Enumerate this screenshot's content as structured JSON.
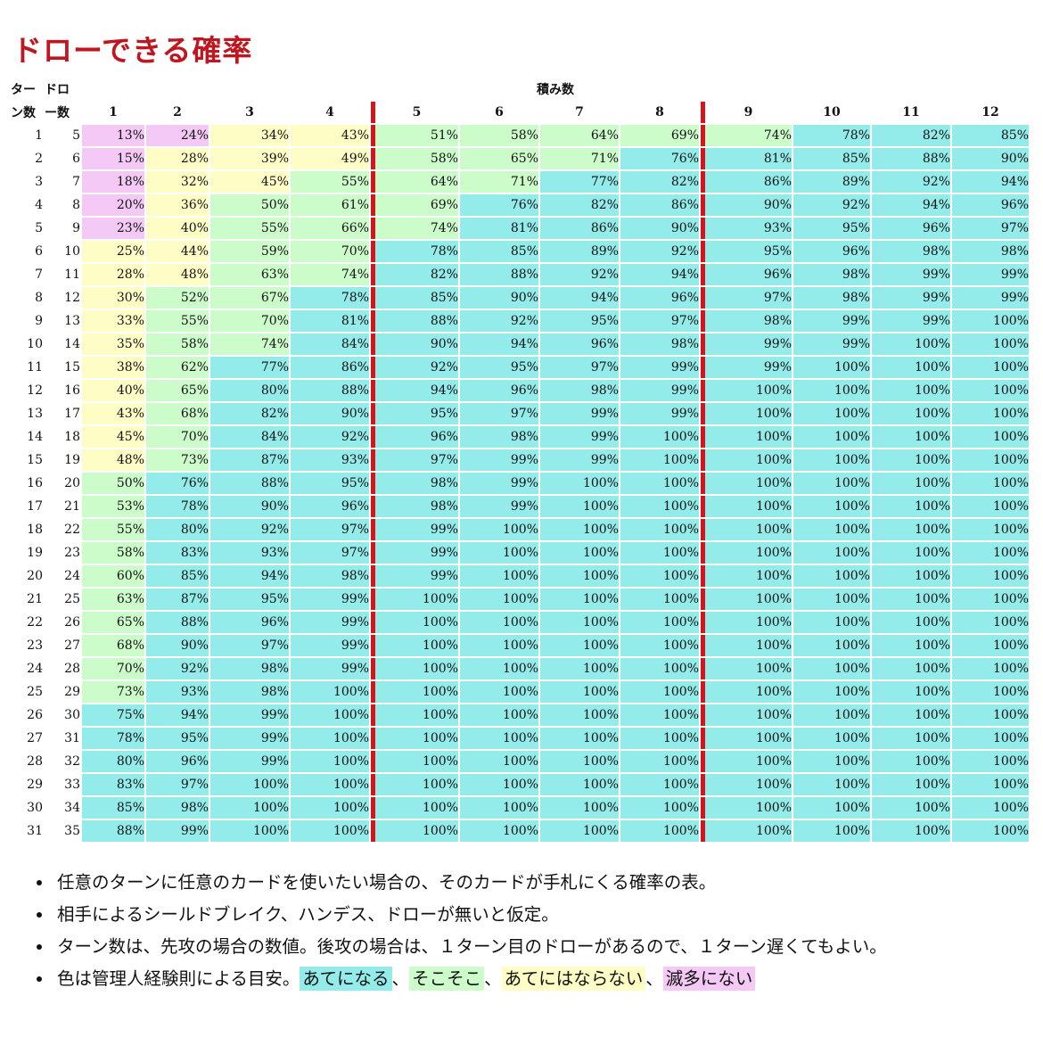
{
  "title": "ドローできる確率",
  "headers": {
    "turn_top": "ター",
    "turn_bottom": "ン数",
    "draw_top": "ドロ",
    "draw_bottom": "ー数",
    "stack_label": "積み数",
    "stack_counts": [
      "1",
      "2",
      "3",
      "4",
      "5",
      "6",
      "7",
      "8",
      "9",
      "10",
      "11",
      "12"
    ]
  },
  "colors": {
    "rare": "#f5c9f5",
    "unreliable": "#fefdc6",
    "moderate": "#cdfccb",
    "reliable": "#93ebea",
    "separator": "#d7141a",
    "title": "#c0161f"
  },
  "rows": [
    {
      "turn": "1",
      "draw": "5",
      "values": [
        "13%",
        "24%",
        "34%",
        "43%",
        "51%",
        "58%",
        "64%",
        "69%",
        "74%",
        "78%",
        "82%",
        "85%"
      ],
      "levels": [
        0,
        0,
        1,
        1,
        2,
        2,
        2,
        2,
        2,
        3,
        3,
        3
      ]
    },
    {
      "turn": "2",
      "draw": "6",
      "values": [
        "15%",
        "28%",
        "39%",
        "49%",
        "58%",
        "65%",
        "71%",
        "76%",
        "81%",
        "85%",
        "88%",
        "90%"
      ],
      "levels": [
        0,
        1,
        1,
        1,
        2,
        2,
        2,
        3,
        3,
        3,
        3,
        3
      ]
    },
    {
      "turn": "3",
      "draw": "7",
      "values": [
        "18%",
        "32%",
        "45%",
        "55%",
        "64%",
        "71%",
        "77%",
        "82%",
        "86%",
        "89%",
        "92%",
        "94%"
      ],
      "levels": [
        0,
        1,
        1,
        2,
        2,
        2,
        3,
        3,
        3,
        3,
        3,
        3
      ]
    },
    {
      "turn": "4",
      "draw": "8",
      "values": [
        "20%",
        "36%",
        "50%",
        "61%",
        "69%",
        "76%",
        "82%",
        "86%",
        "90%",
        "92%",
        "94%",
        "96%"
      ],
      "levels": [
        0,
        1,
        2,
        2,
        2,
        3,
        3,
        3,
        3,
        3,
        3,
        3
      ]
    },
    {
      "turn": "5",
      "draw": "9",
      "values": [
        "23%",
        "40%",
        "55%",
        "66%",
        "74%",
        "81%",
        "86%",
        "90%",
        "93%",
        "95%",
        "96%",
        "97%"
      ],
      "levels": [
        0,
        1,
        2,
        2,
        2,
        3,
        3,
        3,
        3,
        3,
        3,
        3
      ]
    },
    {
      "turn": "6",
      "draw": "10",
      "values": [
        "25%",
        "44%",
        "59%",
        "70%",
        "78%",
        "85%",
        "89%",
        "92%",
        "95%",
        "96%",
        "98%",
        "98%"
      ],
      "levels": [
        1,
        1,
        2,
        2,
        3,
        3,
        3,
        3,
        3,
        3,
        3,
        3
      ]
    },
    {
      "turn": "7",
      "draw": "11",
      "values": [
        "28%",
        "48%",
        "63%",
        "74%",
        "82%",
        "88%",
        "92%",
        "94%",
        "96%",
        "98%",
        "99%",
        "99%"
      ],
      "levels": [
        1,
        1,
        2,
        2,
        3,
        3,
        3,
        3,
        3,
        3,
        3,
        3
      ]
    },
    {
      "turn": "8",
      "draw": "12",
      "values": [
        "30%",
        "52%",
        "67%",
        "78%",
        "85%",
        "90%",
        "94%",
        "96%",
        "97%",
        "98%",
        "99%",
        "99%"
      ],
      "levels": [
        1,
        2,
        2,
        3,
        3,
        3,
        3,
        3,
        3,
        3,
        3,
        3
      ]
    },
    {
      "turn": "9",
      "draw": "13",
      "values": [
        "33%",
        "55%",
        "70%",
        "81%",
        "88%",
        "92%",
        "95%",
        "97%",
        "98%",
        "99%",
        "99%",
        "100%"
      ],
      "levels": [
        1,
        2,
        2,
        3,
        3,
        3,
        3,
        3,
        3,
        3,
        3,
        3
      ]
    },
    {
      "turn": "10",
      "draw": "14",
      "values": [
        "35%",
        "58%",
        "74%",
        "84%",
        "90%",
        "94%",
        "96%",
        "98%",
        "99%",
        "99%",
        "100%",
        "100%"
      ],
      "levels": [
        1,
        2,
        2,
        3,
        3,
        3,
        3,
        3,
        3,
        3,
        3,
        3
      ]
    },
    {
      "turn": "11",
      "draw": "15",
      "values": [
        "38%",
        "62%",
        "77%",
        "86%",
        "92%",
        "95%",
        "97%",
        "99%",
        "99%",
        "100%",
        "100%",
        "100%"
      ],
      "levels": [
        1,
        2,
        3,
        3,
        3,
        3,
        3,
        3,
        3,
        3,
        3,
        3
      ]
    },
    {
      "turn": "12",
      "draw": "16",
      "values": [
        "40%",
        "65%",
        "80%",
        "88%",
        "94%",
        "96%",
        "98%",
        "99%",
        "100%",
        "100%",
        "100%",
        "100%"
      ],
      "levels": [
        1,
        2,
        3,
        3,
        3,
        3,
        3,
        3,
        3,
        3,
        3,
        3
      ]
    },
    {
      "turn": "13",
      "draw": "17",
      "values": [
        "43%",
        "68%",
        "82%",
        "90%",
        "95%",
        "97%",
        "99%",
        "99%",
        "100%",
        "100%",
        "100%",
        "100%"
      ],
      "levels": [
        1,
        2,
        3,
        3,
        3,
        3,
        3,
        3,
        3,
        3,
        3,
        3
      ]
    },
    {
      "turn": "14",
      "draw": "18",
      "values": [
        "45%",
        "70%",
        "84%",
        "92%",
        "96%",
        "98%",
        "99%",
        "100%",
        "100%",
        "100%",
        "100%",
        "100%"
      ],
      "levels": [
        1,
        2,
        3,
        3,
        3,
        3,
        3,
        3,
        3,
        3,
        3,
        3
      ]
    },
    {
      "turn": "15",
      "draw": "19",
      "values": [
        "48%",
        "73%",
        "87%",
        "93%",
        "97%",
        "99%",
        "99%",
        "100%",
        "100%",
        "100%",
        "100%",
        "100%"
      ],
      "levels": [
        1,
        2,
        3,
        3,
        3,
        3,
        3,
        3,
        3,
        3,
        3,
        3
      ]
    },
    {
      "turn": "16",
      "draw": "20",
      "values": [
        "50%",
        "76%",
        "88%",
        "95%",
        "98%",
        "99%",
        "100%",
        "100%",
        "100%",
        "100%",
        "100%",
        "100%"
      ],
      "levels": [
        2,
        3,
        3,
        3,
        3,
        3,
        3,
        3,
        3,
        3,
        3,
        3
      ]
    },
    {
      "turn": "17",
      "draw": "21",
      "values": [
        "53%",
        "78%",
        "90%",
        "96%",
        "98%",
        "99%",
        "100%",
        "100%",
        "100%",
        "100%",
        "100%",
        "100%"
      ],
      "levels": [
        2,
        3,
        3,
        3,
        3,
        3,
        3,
        3,
        3,
        3,
        3,
        3
      ]
    },
    {
      "turn": "18",
      "draw": "22",
      "values": [
        "55%",
        "80%",
        "92%",
        "97%",
        "99%",
        "100%",
        "100%",
        "100%",
        "100%",
        "100%",
        "100%",
        "100%"
      ],
      "levels": [
        2,
        3,
        3,
        3,
        3,
        3,
        3,
        3,
        3,
        3,
        3,
        3
      ]
    },
    {
      "turn": "19",
      "draw": "23",
      "values": [
        "58%",
        "83%",
        "93%",
        "97%",
        "99%",
        "100%",
        "100%",
        "100%",
        "100%",
        "100%",
        "100%",
        "100%"
      ],
      "levels": [
        2,
        3,
        3,
        3,
        3,
        3,
        3,
        3,
        3,
        3,
        3,
        3
      ]
    },
    {
      "turn": "20",
      "draw": "24",
      "values": [
        "60%",
        "85%",
        "94%",
        "98%",
        "99%",
        "100%",
        "100%",
        "100%",
        "100%",
        "100%",
        "100%",
        "100%"
      ],
      "levels": [
        2,
        3,
        3,
        3,
        3,
        3,
        3,
        3,
        3,
        3,
        3,
        3
      ]
    },
    {
      "turn": "21",
      "draw": "25",
      "values": [
        "63%",
        "87%",
        "95%",
        "99%",
        "100%",
        "100%",
        "100%",
        "100%",
        "100%",
        "100%",
        "100%",
        "100%"
      ],
      "levels": [
        2,
        3,
        3,
        3,
        3,
        3,
        3,
        3,
        3,
        3,
        3,
        3
      ]
    },
    {
      "turn": "22",
      "draw": "26",
      "values": [
        "65%",
        "88%",
        "96%",
        "99%",
        "100%",
        "100%",
        "100%",
        "100%",
        "100%",
        "100%",
        "100%",
        "100%"
      ],
      "levels": [
        2,
        3,
        3,
        3,
        3,
        3,
        3,
        3,
        3,
        3,
        3,
        3
      ]
    },
    {
      "turn": "23",
      "draw": "27",
      "values": [
        "68%",
        "90%",
        "97%",
        "99%",
        "100%",
        "100%",
        "100%",
        "100%",
        "100%",
        "100%",
        "100%",
        "100%"
      ],
      "levels": [
        2,
        3,
        3,
        3,
        3,
        3,
        3,
        3,
        3,
        3,
        3,
        3
      ]
    },
    {
      "turn": "24",
      "draw": "28",
      "values": [
        "70%",
        "92%",
        "98%",
        "99%",
        "100%",
        "100%",
        "100%",
        "100%",
        "100%",
        "100%",
        "100%",
        "100%"
      ],
      "levels": [
        2,
        3,
        3,
        3,
        3,
        3,
        3,
        3,
        3,
        3,
        3,
        3
      ]
    },
    {
      "turn": "25",
      "draw": "29",
      "values": [
        "73%",
        "93%",
        "98%",
        "100%",
        "100%",
        "100%",
        "100%",
        "100%",
        "100%",
        "100%",
        "100%",
        "100%"
      ],
      "levels": [
        2,
        3,
        3,
        3,
        3,
        3,
        3,
        3,
        3,
        3,
        3,
        3
      ]
    },
    {
      "turn": "26",
      "draw": "30",
      "values": [
        "75%",
        "94%",
        "99%",
        "100%",
        "100%",
        "100%",
        "100%",
        "100%",
        "100%",
        "100%",
        "100%",
        "100%"
      ],
      "levels": [
        3,
        3,
        3,
        3,
        3,
        3,
        3,
        3,
        3,
        3,
        3,
        3
      ]
    },
    {
      "turn": "27",
      "draw": "31",
      "values": [
        "78%",
        "95%",
        "99%",
        "100%",
        "100%",
        "100%",
        "100%",
        "100%",
        "100%",
        "100%",
        "100%",
        "100%"
      ],
      "levels": [
        3,
        3,
        3,
        3,
        3,
        3,
        3,
        3,
        3,
        3,
        3,
        3
      ]
    },
    {
      "turn": "28",
      "draw": "32",
      "values": [
        "80%",
        "96%",
        "99%",
        "100%",
        "100%",
        "100%",
        "100%",
        "100%",
        "100%",
        "100%",
        "100%",
        "100%"
      ],
      "levels": [
        3,
        3,
        3,
        3,
        3,
        3,
        3,
        3,
        3,
        3,
        3,
        3
      ]
    },
    {
      "turn": "29",
      "draw": "33",
      "values": [
        "83%",
        "97%",
        "100%",
        "100%",
        "100%",
        "100%",
        "100%",
        "100%",
        "100%",
        "100%",
        "100%",
        "100%"
      ],
      "levels": [
        3,
        3,
        3,
        3,
        3,
        3,
        3,
        3,
        3,
        3,
        3,
        3
      ]
    },
    {
      "turn": "30",
      "draw": "34",
      "values": [
        "85%",
        "98%",
        "100%",
        "100%",
        "100%",
        "100%",
        "100%",
        "100%",
        "100%",
        "100%",
        "100%",
        "100%"
      ],
      "levels": [
        3,
        3,
        3,
        3,
        3,
        3,
        3,
        3,
        3,
        3,
        3,
        3
      ]
    },
    {
      "turn": "31",
      "draw": "35",
      "values": [
        "88%",
        "99%",
        "100%",
        "100%",
        "100%",
        "100%",
        "100%",
        "100%",
        "100%",
        "100%",
        "100%",
        "100%"
      ],
      "levels": [
        3,
        3,
        3,
        3,
        3,
        3,
        3,
        3,
        3,
        3,
        3,
        3
      ]
    }
  ],
  "notes": [
    "任意のターンに任意のカードを使いたい場合の、そのカードが手札にくる確率の表。",
    "相手によるシールドブレイク、ハンデス、ドローが無いと仮定。",
    "ターン数は、先攻の場合の数値。後攻の場合は、１ターン目のドローがあるので、１ターン遅くてもよい。"
  ],
  "legend": {
    "prefix": "色は管理人経験則による目安。",
    "reliable": "あてになる",
    "moderate": "そこそこ",
    "unreliable": "あてにはならない",
    "rare": "滅多にない",
    "sep": "、"
  }
}
